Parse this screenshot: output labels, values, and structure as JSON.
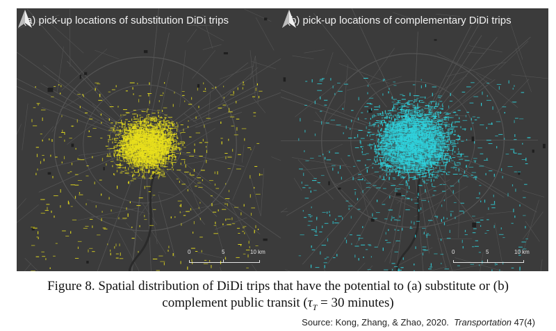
{
  "panels": {
    "a": {
      "title": "(a) pick-up locations of substitution DiDi trips",
      "color": "#e8df1c"
    },
    "b": {
      "title": "(b) pick-up locations of complementary DiDi trips",
      "color": "#2fd2dc"
    }
  },
  "scale_bar": {
    "label_0": "0",
    "label_5": "5",
    "label_10": "10 km"
  },
  "north_arrow": {
    "icon": "north-arrow-icon"
  },
  "caption": {
    "line1": "Figure 8. Spatial distribution of DiDi trips that have the potential to (a) substitute or (b)",
    "line2_prefix": "complement public transit (",
    "tau": "τ",
    "tau_sub": "T",
    "line2_suffix": " = 30 minutes)"
  },
  "source": {
    "prefix": "Source: Kong, Zhang, & Zhao, 2020.",
    "journal": "Transportation",
    "volume": " 47(4)"
  }
}
